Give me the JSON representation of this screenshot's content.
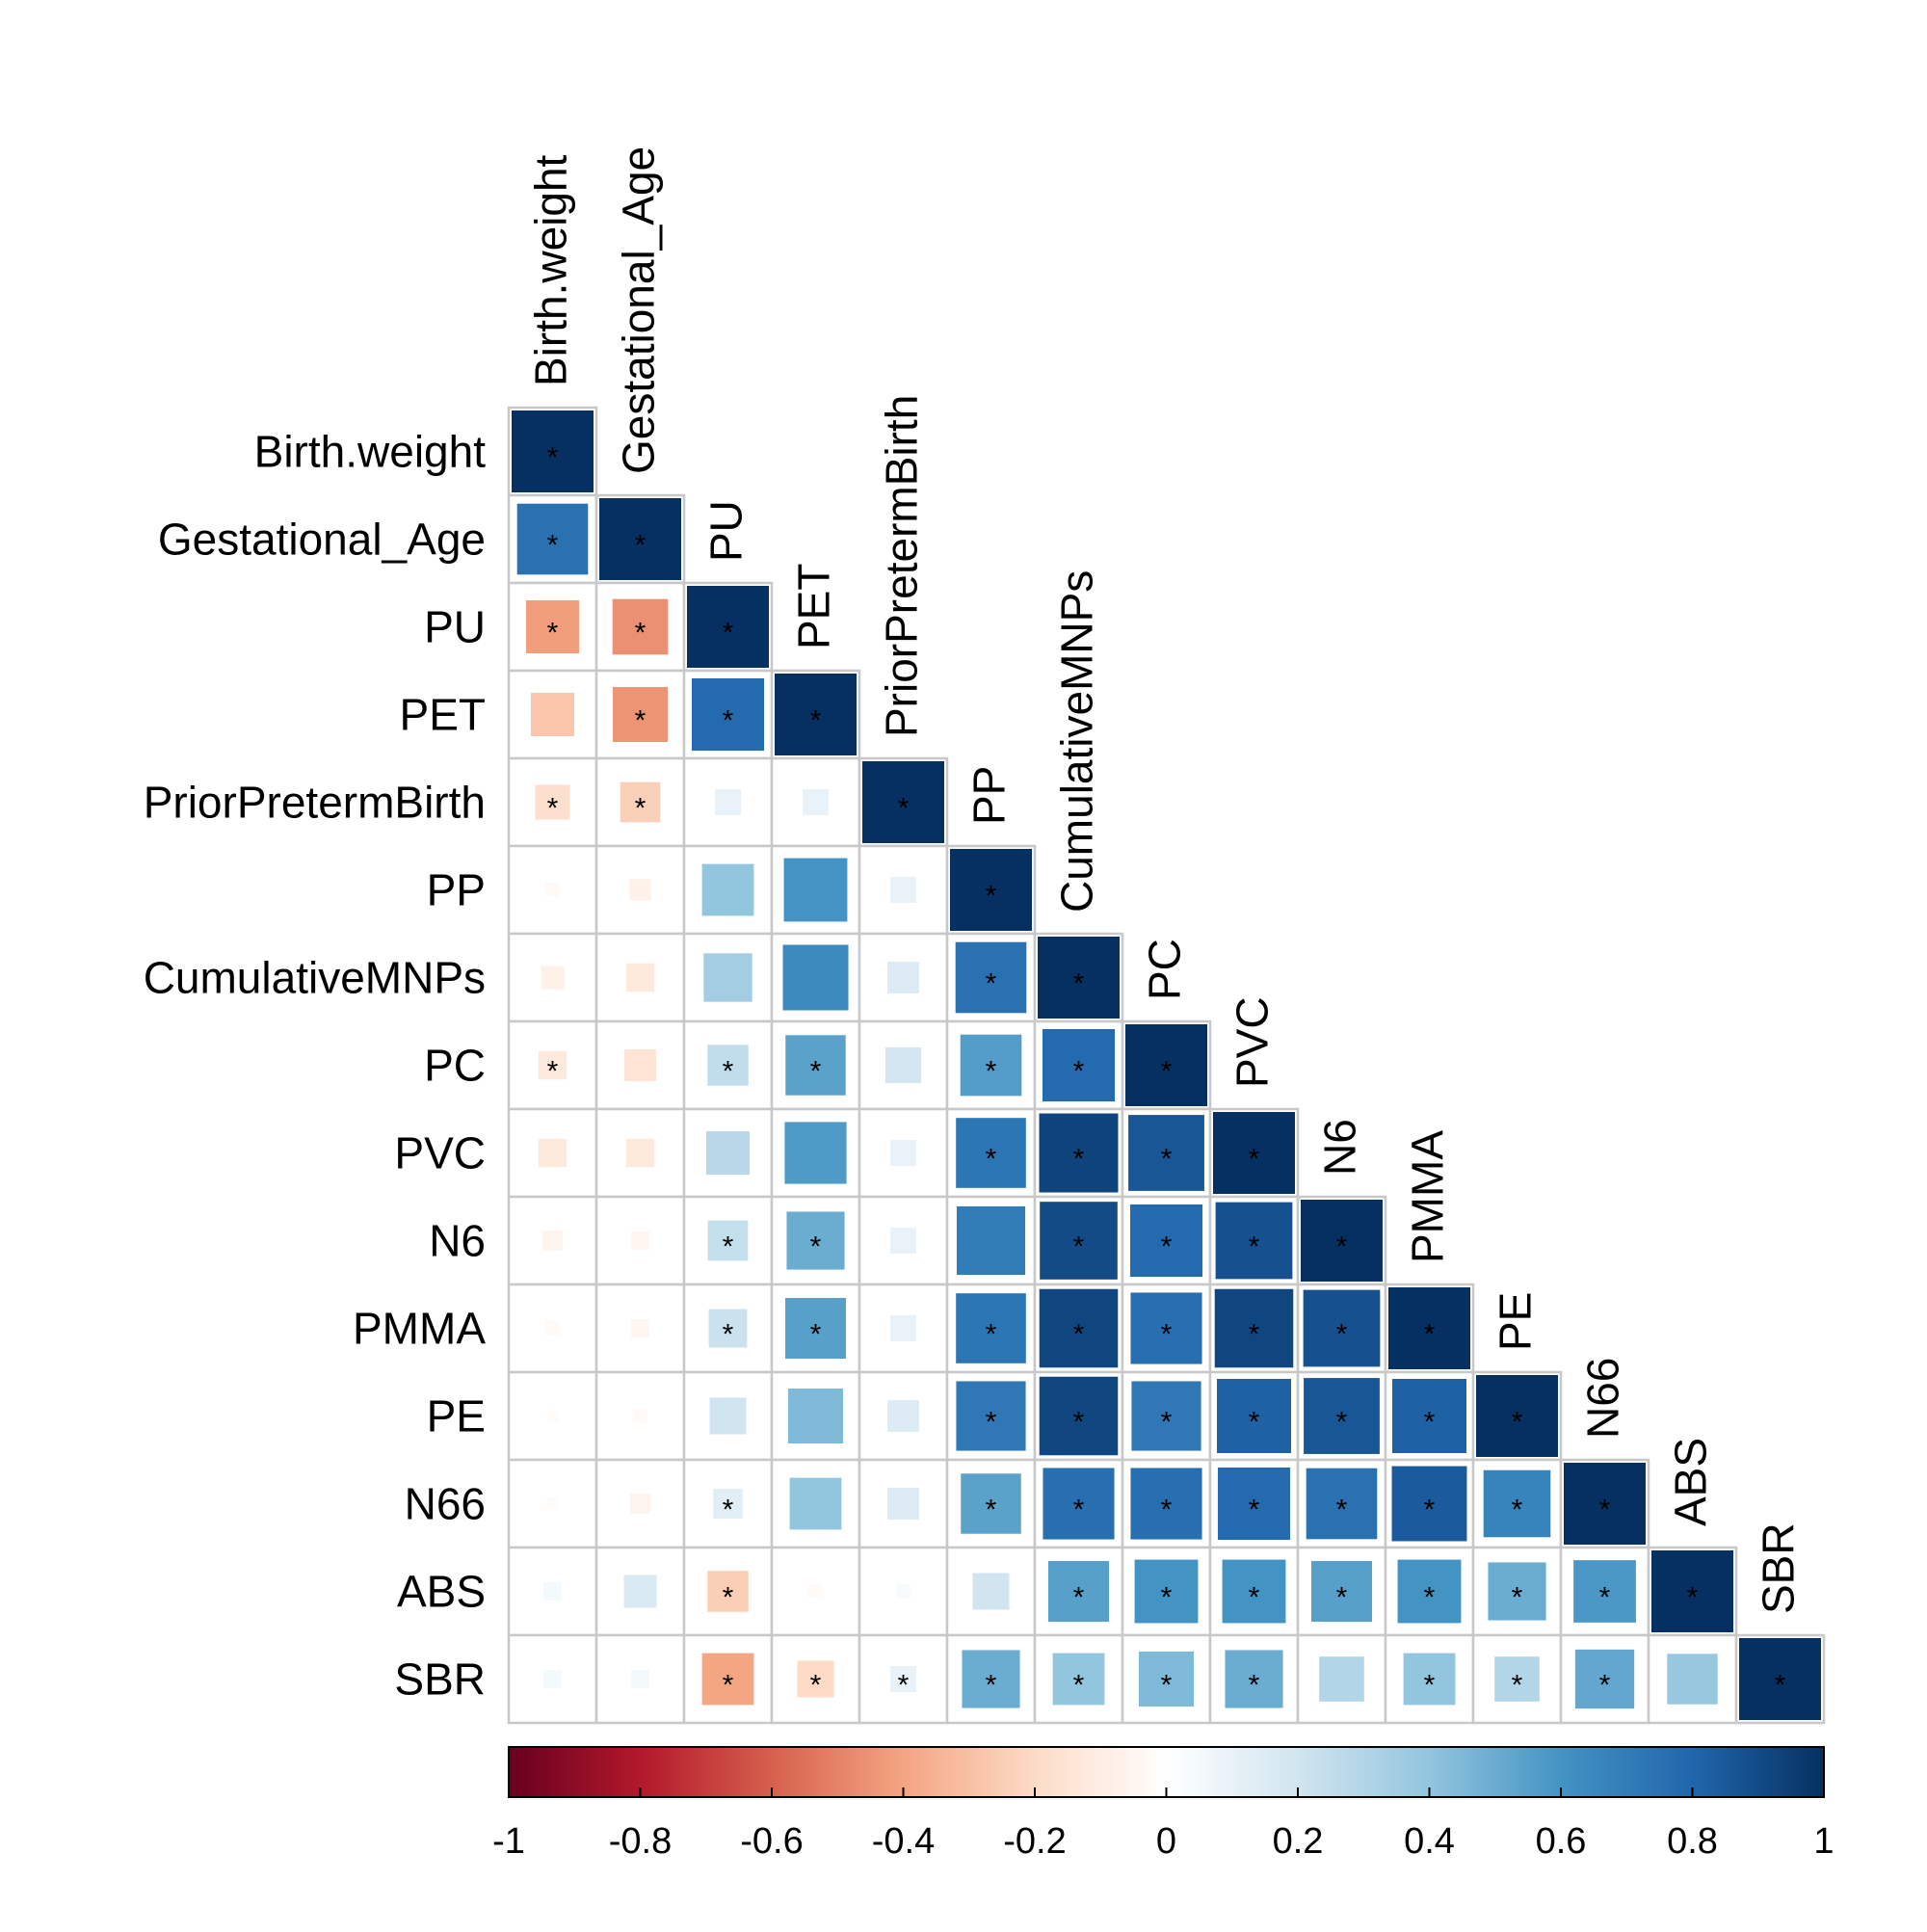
{
  "chart_data": {
    "type": "heatmap",
    "variables": [
      "Birth.weight",
      "Gestational_Age",
      "PU",
      "PET",
      "PriorPretermBirth",
      "PP",
      "CumulativeMNPs",
      "PC",
      "PVC",
      "N6",
      "PMMA",
      "PE",
      "N66",
      "ABS",
      "SBR"
    ],
    "layout": "lower-triangle",
    "marker": "square sized by |r|",
    "values": [
      [
        1.0
      ],
      [
        0.75,
        1.0
      ],
      [
        -0.42,
        -0.46,
        1.0
      ],
      [
        -0.28,
        -0.45,
        0.78,
        1.0
      ],
      [
        -0.18,
        -0.24,
        0.1,
        0.1,
        1.0
      ],
      [
        -0.03,
        -0.07,
        0.4,
        0.6,
        0.1,
        1.0
      ],
      [
        -0.08,
        -0.12,
        0.35,
        0.64,
        0.15,
        0.75,
        1.0
      ],
      [
        -0.12,
        -0.15,
        0.25,
        0.54,
        0.19,
        0.56,
        0.78,
        1.0
      ],
      [
        -0.12,
        -0.12,
        0.28,
        0.57,
        0.1,
        0.73,
        0.93,
        0.86,
        1.0
      ],
      [
        -0.06,
        -0.05,
        0.24,
        0.5,
        0.1,
        0.7,
        0.9,
        0.78,
        0.88,
        1.0
      ],
      [
        -0.03,
        -0.05,
        0.22,
        0.55,
        0.1,
        0.73,
        0.92,
        0.76,
        0.92,
        0.88,
        1.0
      ],
      [
        -0.02,
        -0.03,
        0.2,
        0.45,
        0.15,
        0.72,
        0.92,
        0.72,
        0.82,
        0.86,
        0.82,
        1.0
      ],
      [
        -0.02,
        -0.06,
        0.13,
        0.4,
        0.15,
        0.54,
        0.76,
        0.76,
        0.78,
        0.75,
        0.84,
        0.67,
        1.0
      ],
      [
        0.05,
        0.16,
        -0.25,
        -0.03,
        0.03,
        0.2,
        0.55,
        0.6,
        0.6,
        0.55,
        0.6,
        0.5,
        0.58,
        1.0
      ],
      [
        0.05,
        0.05,
        -0.4,
        -0.2,
        0.1,
        0.5,
        0.4,
        0.45,
        0.5,
        0.3,
        0.4,
        0.3,
        0.52,
        0.38,
        1.0
      ]
    ],
    "significant": [
      [
        true
      ],
      [
        true,
        true
      ],
      [
        true,
        true,
        true
      ],
      [
        false,
        true,
        true,
        true
      ],
      [
        true,
        true,
        false,
        false,
        true
      ],
      [
        false,
        false,
        false,
        false,
        false,
        true
      ],
      [
        false,
        false,
        false,
        false,
        false,
        true,
        true
      ],
      [
        true,
        false,
        true,
        true,
        false,
        true,
        true,
        true
      ],
      [
        false,
        false,
        false,
        false,
        false,
        true,
        true,
        true,
        true
      ],
      [
        false,
        false,
        true,
        true,
        false,
        false,
        true,
        true,
        true,
        true
      ],
      [
        false,
        false,
        true,
        true,
        false,
        true,
        true,
        true,
        true,
        true,
        true
      ],
      [
        false,
        false,
        false,
        false,
        false,
        true,
        true,
        true,
        true,
        true,
        true,
        true
      ],
      [
        false,
        false,
        true,
        false,
        false,
        true,
        true,
        true,
        true,
        true,
        true,
        true,
        true
      ],
      [
        false,
        false,
        true,
        false,
        false,
        false,
        true,
        true,
        true,
        true,
        true,
        true,
        true,
        true
      ],
      [
        false,
        false,
        true,
        true,
        true,
        true,
        true,
        true,
        true,
        false,
        true,
        true,
        true,
        false,
        true
      ]
    ],
    "significance_marker": "*",
    "colorbar": {
      "range": [
        -1,
        1
      ],
      "ticks": [
        "-1",
        "-0.8",
        "-0.6",
        "-0.4",
        "-0.2",
        "0",
        "0.2",
        "0.4",
        "0.6",
        "0.8",
        "1"
      ],
      "colors": [
        "#67001F",
        "#B2182B",
        "#D6604D",
        "#F4A582",
        "#FDDBC7",
        "#FFFFFF",
        "#D1E5F0",
        "#92C5DE",
        "#4393C3",
        "#2166AC",
        "#053061"
      ]
    },
    "grid": true
  }
}
